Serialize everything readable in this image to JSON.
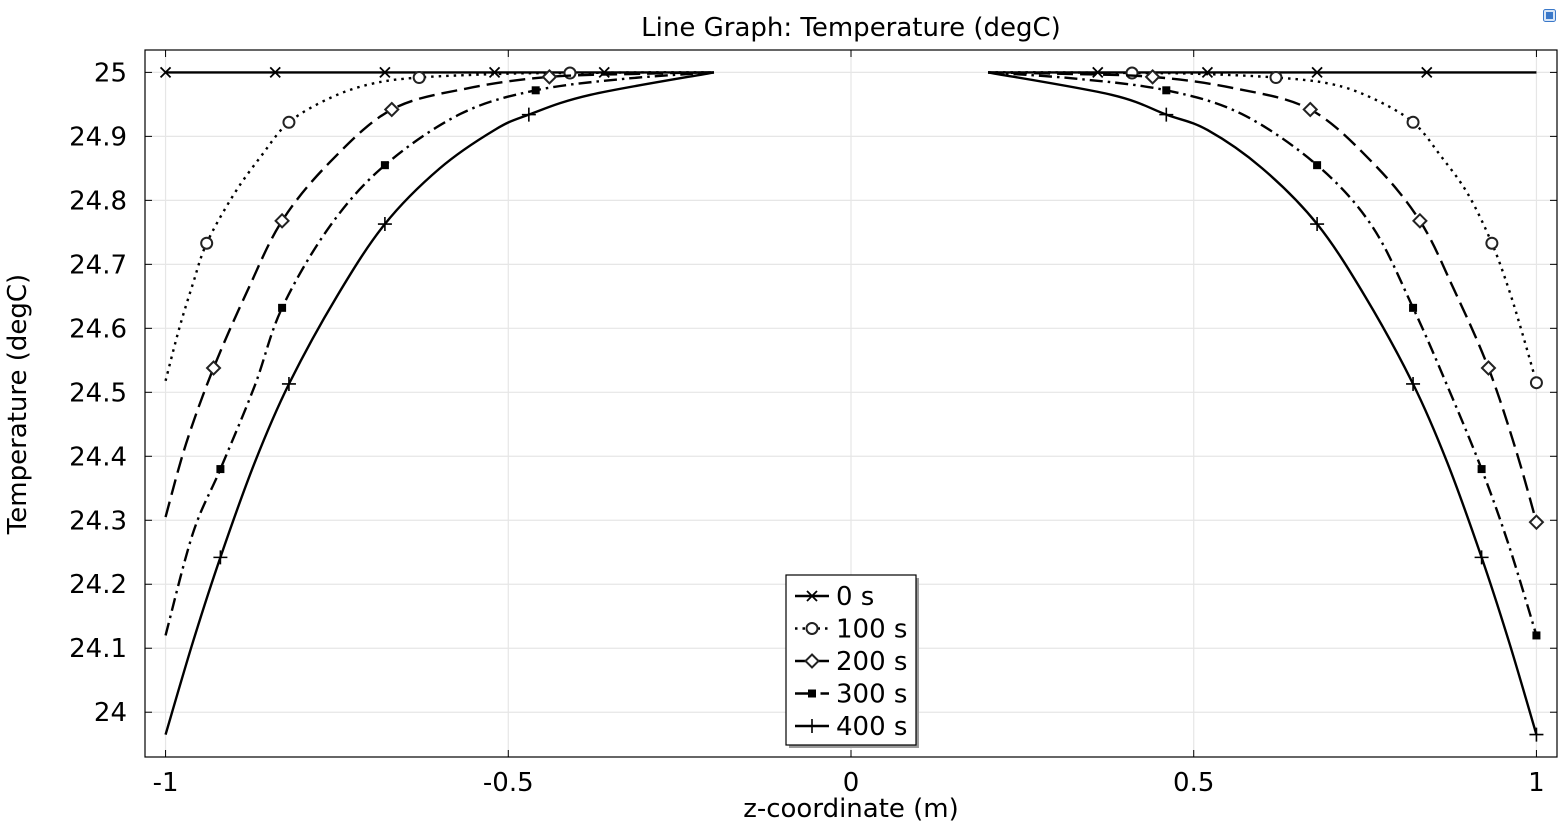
{
  "chart_data": {
    "type": "line",
    "title": "Line Graph: Temperature (degC)",
    "xlabel": "z-coordinate (m)",
    "ylabel": "Temperature (degC)",
    "xlim": [
      -1.03,
      1.03
    ],
    "ylim": [
      23.93,
      25.035
    ],
    "grid": true,
    "legend_position": "bottom-center",
    "x_ticks": [
      -1,
      -0.5,
      0,
      0.5,
      1
    ],
    "x_tick_labels": [
      "-1",
      "-0.5",
      "0",
      "0.5",
      "1"
    ],
    "y_ticks": [
      24,
      24.1,
      24.2,
      24.3,
      24.4,
      24.5,
      24.6,
      24.7,
      24.8,
      24.9,
      25
    ],
    "y_tick_labels": [
      "24",
      "24.1",
      "24.2",
      "24.3",
      "24.4",
      "24.5",
      "24.6",
      "24.7",
      "24.8",
      "24.9",
      "25"
    ],
    "gap": [
      -0.2,
      0.2
    ],
    "series": [
      {
        "name": "0 s",
        "dash": "solid",
        "marker": "x",
        "left": [
          [
            -1,
            25.0
          ],
          [
            -0.2,
            25.0
          ]
        ],
        "right": [
          [
            0.2,
            25.0
          ],
          [
            1,
            25.0
          ]
        ],
        "markers": [
          [
            -1,
            25.0
          ],
          [
            -0.84,
            25.0
          ],
          [
            -0.68,
            25.0
          ],
          [
            -0.52,
            25.0
          ],
          [
            -0.36,
            25.0
          ],
          [
            0.36,
            25.0
          ],
          [
            0.52,
            25.0
          ],
          [
            0.68,
            25.0
          ],
          [
            0.84,
            25.0
          ]
        ]
      },
      {
        "name": "100 s",
        "dash": "dotted",
        "marker": "circle",
        "left": [
          [
            -1,
            24.518
          ],
          [
            -0.98,
            24.6
          ],
          [
            -0.96,
            24.67
          ],
          [
            -0.94,
            24.733
          ],
          [
            -0.9,
            24.81
          ],
          [
            -0.86,
            24.87
          ],
          [
            -0.82,
            24.922
          ],
          [
            -0.76,
            24.96
          ],
          [
            -0.7,
            24.982
          ],
          [
            -0.63,
            24.992
          ],
          [
            -0.5,
            24.998
          ],
          [
            -0.41,
            24.999
          ],
          [
            -0.3,
            25.0
          ],
          [
            -0.2,
            25.0
          ]
        ],
        "right": [
          [
            0.2,
            25.0
          ],
          [
            0.3,
            25.0
          ],
          [
            0.41,
            24.999
          ],
          [
            0.5,
            24.998
          ],
          [
            0.62,
            24.992
          ],
          [
            0.7,
            24.982
          ],
          [
            0.76,
            24.96
          ],
          [
            0.82,
            24.922
          ],
          [
            0.86,
            24.87
          ],
          [
            0.9,
            24.81
          ],
          [
            0.935,
            24.733
          ],
          [
            0.96,
            24.66
          ],
          [
            0.98,
            24.59
          ],
          [
            1,
            24.515
          ]
        ],
        "markers": [
          [
            -0.94,
            24.733
          ],
          [
            -0.82,
            24.922
          ],
          [
            -0.63,
            24.992
          ],
          [
            -0.41,
            24.999
          ],
          [
            0.41,
            24.999
          ],
          [
            0.62,
            24.992
          ],
          [
            0.82,
            24.922
          ],
          [
            0.935,
            24.733
          ],
          [
            1,
            24.515
          ]
        ]
      },
      {
        "name": "200 s",
        "dash": "dashed",
        "marker": "diamond",
        "left": [
          [
            -1,
            24.305
          ],
          [
            -0.97,
            24.42
          ],
          [
            -0.93,
            24.538
          ],
          [
            -0.88,
            24.66
          ],
          [
            -0.83,
            24.768
          ],
          [
            -0.76,
            24.86
          ],
          [
            -0.67,
            24.942
          ],
          [
            -0.56,
            24.975
          ],
          [
            -0.44,
            24.993
          ],
          [
            -0.3,
            24.998
          ],
          [
            -0.2,
            25.0
          ]
        ],
        "right": [
          [
            0.2,
            25.0
          ],
          [
            0.3,
            24.998
          ],
          [
            0.44,
            24.993
          ],
          [
            0.56,
            24.975
          ],
          [
            0.67,
            24.942
          ],
          [
            0.76,
            24.86
          ],
          [
            0.83,
            24.768
          ],
          [
            0.88,
            24.66
          ],
          [
            0.93,
            24.538
          ],
          [
            0.97,
            24.41
          ],
          [
            1,
            24.297
          ]
        ],
        "markers": [
          [
            -0.93,
            24.538
          ],
          [
            -0.83,
            24.768
          ],
          [
            -0.67,
            24.942
          ],
          [
            -0.44,
            24.993
          ],
          [
            0.44,
            24.993
          ],
          [
            0.67,
            24.942
          ],
          [
            0.83,
            24.768
          ],
          [
            0.93,
            24.538
          ],
          [
            1,
            24.297
          ]
        ]
      },
      {
        "name": "300 s",
        "dash": "dashdot",
        "marker": "square",
        "left": [
          [
            -1,
            24.12
          ],
          [
            -0.96,
            24.28
          ],
          [
            -0.92,
            24.38
          ],
          [
            -0.87,
            24.51
          ],
          [
            -0.83,
            24.632
          ],
          [
            -0.76,
            24.76
          ],
          [
            -0.68,
            24.855
          ],
          [
            -0.57,
            24.935
          ],
          [
            -0.46,
            24.972
          ],
          [
            -0.33,
            24.99
          ],
          [
            -0.2,
            25.0
          ]
        ],
        "right": [
          [
            0.2,
            25.0
          ],
          [
            0.33,
            24.99
          ],
          [
            0.46,
            24.972
          ],
          [
            0.57,
            24.935
          ],
          [
            0.68,
            24.855
          ],
          [
            0.76,
            24.76
          ],
          [
            0.82,
            24.632
          ],
          [
            0.87,
            24.51
          ],
          [
            0.92,
            24.38
          ],
          [
            0.96,
            24.26
          ],
          [
            1,
            24.12
          ]
        ],
        "markers": [
          [
            -0.92,
            24.38
          ],
          [
            -0.83,
            24.632
          ],
          [
            -0.68,
            24.855
          ],
          [
            -0.46,
            24.972
          ],
          [
            0.46,
            24.972
          ],
          [
            0.68,
            24.855
          ],
          [
            0.82,
            24.632
          ],
          [
            0.92,
            24.38
          ],
          [
            1,
            24.12
          ]
        ]
      },
      {
        "name": "400 s",
        "dash": "solid",
        "marker": "plus",
        "left": [
          [
            -1,
            23.965
          ],
          [
            -0.96,
            24.11
          ],
          [
            -0.92,
            24.242
          ],
          [
            -0.87,
            24.39
          ],
          [
            -0.82,
            24.513
          ],
          [
            -0.75,
            24.65
          ],
          [
            -0.68,
            24.763
          ],
          [
            -0.6,
            24.85
          ],
          [
            -0.52,
            24.91
          ],
          [
            -0.47,
            24.934
          ],
          [
            -0.38,
            24.965
          ],
          [
            -0.2,
            25.0
          ]
        ],
        "right": [
          [
            0.2,
            25.0
          ],
          [
            0.38,
            24.965
          ],
          [
            0.46,
            24.934
          ],
          [
            0.52,
            24.91
          ],
          [
            0.6,
            24.85
          ],
          [
            0.68,
            24.763
          ],
          [
            0.75,
            24.65
          ],
          [
            0.82,
            24.513
          ],
          [
            0.87,
            24.39
          ],
          [
            0.92,
            24.242
          ],
          [
            0.96,
            24.11
          ],
          [
            1,
            23.965
          ]
        ],
        "markers": [
          [
            -0.92,
            24.242
          ],
          [
            -0.82,
            24.513
          ],
          [
            -0.68,
            24.763
          ],
          [
            -0.47,
            24.934
          ],
          [
            0.46,
            24.934
          ],
          [
            0.68,
            24.763
          ],
          [
            0.82,
            24.513
          ],
          [
            0.92,
            24.242
          ],
          [
            1,
            23.965
          ]
        ]
      }
    ]
  },
  "icons": {
    "corner": "plot-window-icon"
  },
  "colors": {
    "line": "#000000",
    "grid": "#e6e6e6",
    "frame": "#000000",
    "background": "#ffffff",
    "icon": "#3a78c9"
  }
}
